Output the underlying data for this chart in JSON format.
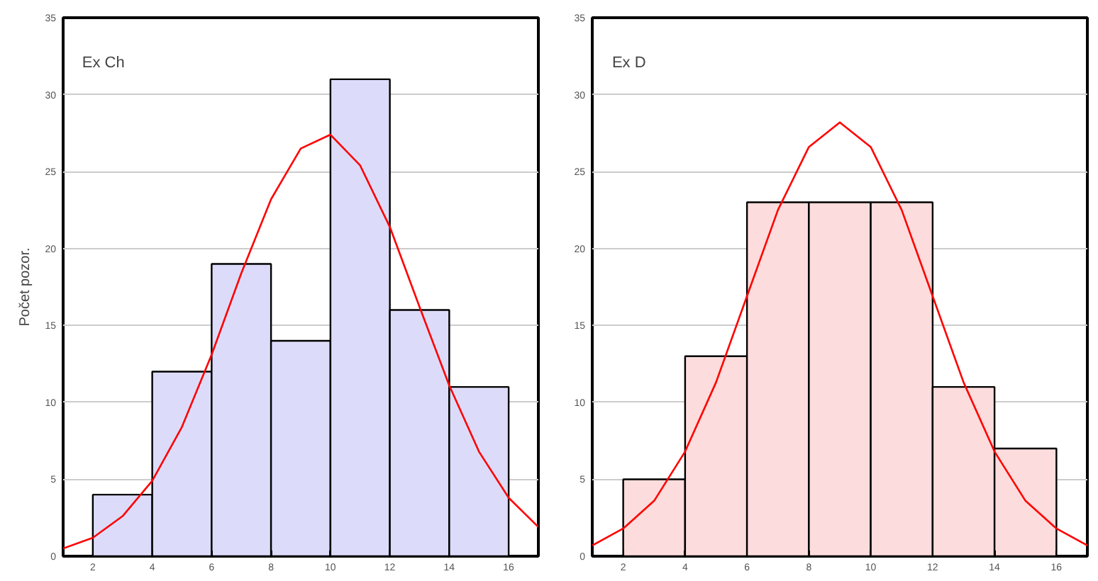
{
  "chart_data": [
    {
      "type": "histogram",
      "title": "Ex Ch",
      "ylabel": "Počet pozor.",
      "xlim": [
        1,
        17
      ],
      "ylim": [
        0,
        35
      ],
      "xticks": [
        2,
        4,
        6,
        8,
        10,
        12,
        14,
        16
      ],
      "yticks": [
        0,
        5,
        10,
        15,
        20,
        25,
        30,
        35
      ],
      "grid": "y",
      "series": [
        {
          "color": "#dcdcfa",
          "bins": [
            2,
            4,
            6,
            8,
            10,
            12,
            14,
            16
          ],
          "values": [
            4,
            12,
            19,
            14,
            31,
            16,
            11
          ]
        },
        {
          "type": "line",
          "color": "#ff0000",
          "x": [
            1,
            2,
            3,
            4,
            5,
            6,
            7,
            8,
            9,
            10,
            11,
            12,
            13,
            14,
            15,
            16,
            17
          ],
          "values": [
            0.5,
            1.2,
            2.6,
            4.9,
            8.4,
            13.1,
            18.4,
            23.2,
            26.5,
            27.4,
            25.4,
            21.4,
            16.2,
            11.1,
            6.8,
            3.8,
            1.9
          ]
        }
      ]
    },
    {
      "type": "histogram",
      "title": "Ex D",
      "xlim": [
        1,
        17
      ],
      "ylim": [
        0,
        35
      ],
      "xticks": [
        2,
        4,
        6,
        8,
        10,
        12,
        14,
        16
      ],
      "yticks": [
        0,
        5,
        10,
        15,
        20,
        25,
        30,
        35
      ],
      "grid": "y",
      "series": [
        {
          "color": "#fcdcdc",
          "bins": [
            2,
            4,
            6,
            8,
            10,
            12,
            14,
            16
          ],
          "values": [
            5,
            13,
            23,
            23,
            23,
            11,
            7
          ]
        },
        {
          "type": "line",
          "color": "#ff0000",
          "x": [
            1,
            2,
            3,
            4,
            5,
            6,
            7,
            8,
            9,
            10,
            11,
            12,
            13,
            14,
            15,
            16,
            17
          ],
          "values": [
            0.7,
            1.8,
            3.6,
            6.8,
            11.3,
            16.9,
            22.5,
            26.6,
            28.2,
            26.6,
            22.5,
            16.9,
            11.3,
            6.8,
            3.6,
            1.8,
            0.7
          ]
        }
      ]
    }
  ]
}
